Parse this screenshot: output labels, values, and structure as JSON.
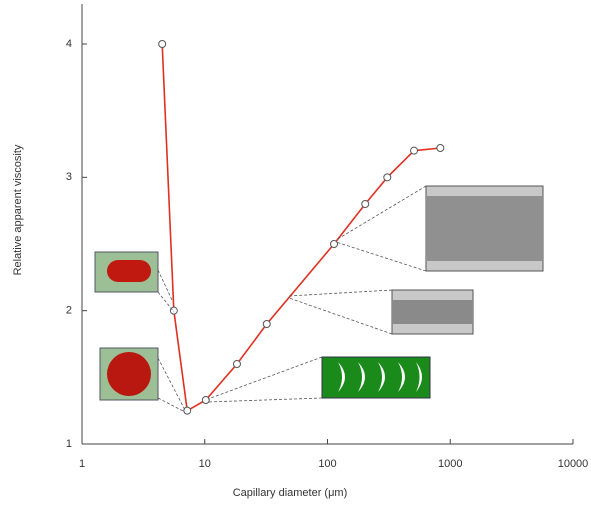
{
  "chart_data": {
    "type": "line",
    "x_label": "Capillary diameter (μm)",
    "y_label": "Relative apparent viscosity",
    "x": [
      4.5,
      5.6,
      7.2,
      10.2,
      18.3,
      32,
      113,
      203,
      307,
      507,
      830
    ],
    "series": [
      {
        "color": "#e03020",
        "values": [
          4.0,
          2.0,
          1.25,
          1.33,
          1.6,
          1.9,
          2.5,
          2.8,
          3.0,
          3.2,
          3.22
        ]
      }
    ],
    "xscale": "log",
    "xlim": [
      1,
      10000
    ],
    "xticks": [
      1,
      10,
      100,
      1000,
      10000
    ],
    "ylim": [
      1,
      4.3
    ],
    "yticks": [
      1,
      2,
      3,
      4
    ]
  }
}
